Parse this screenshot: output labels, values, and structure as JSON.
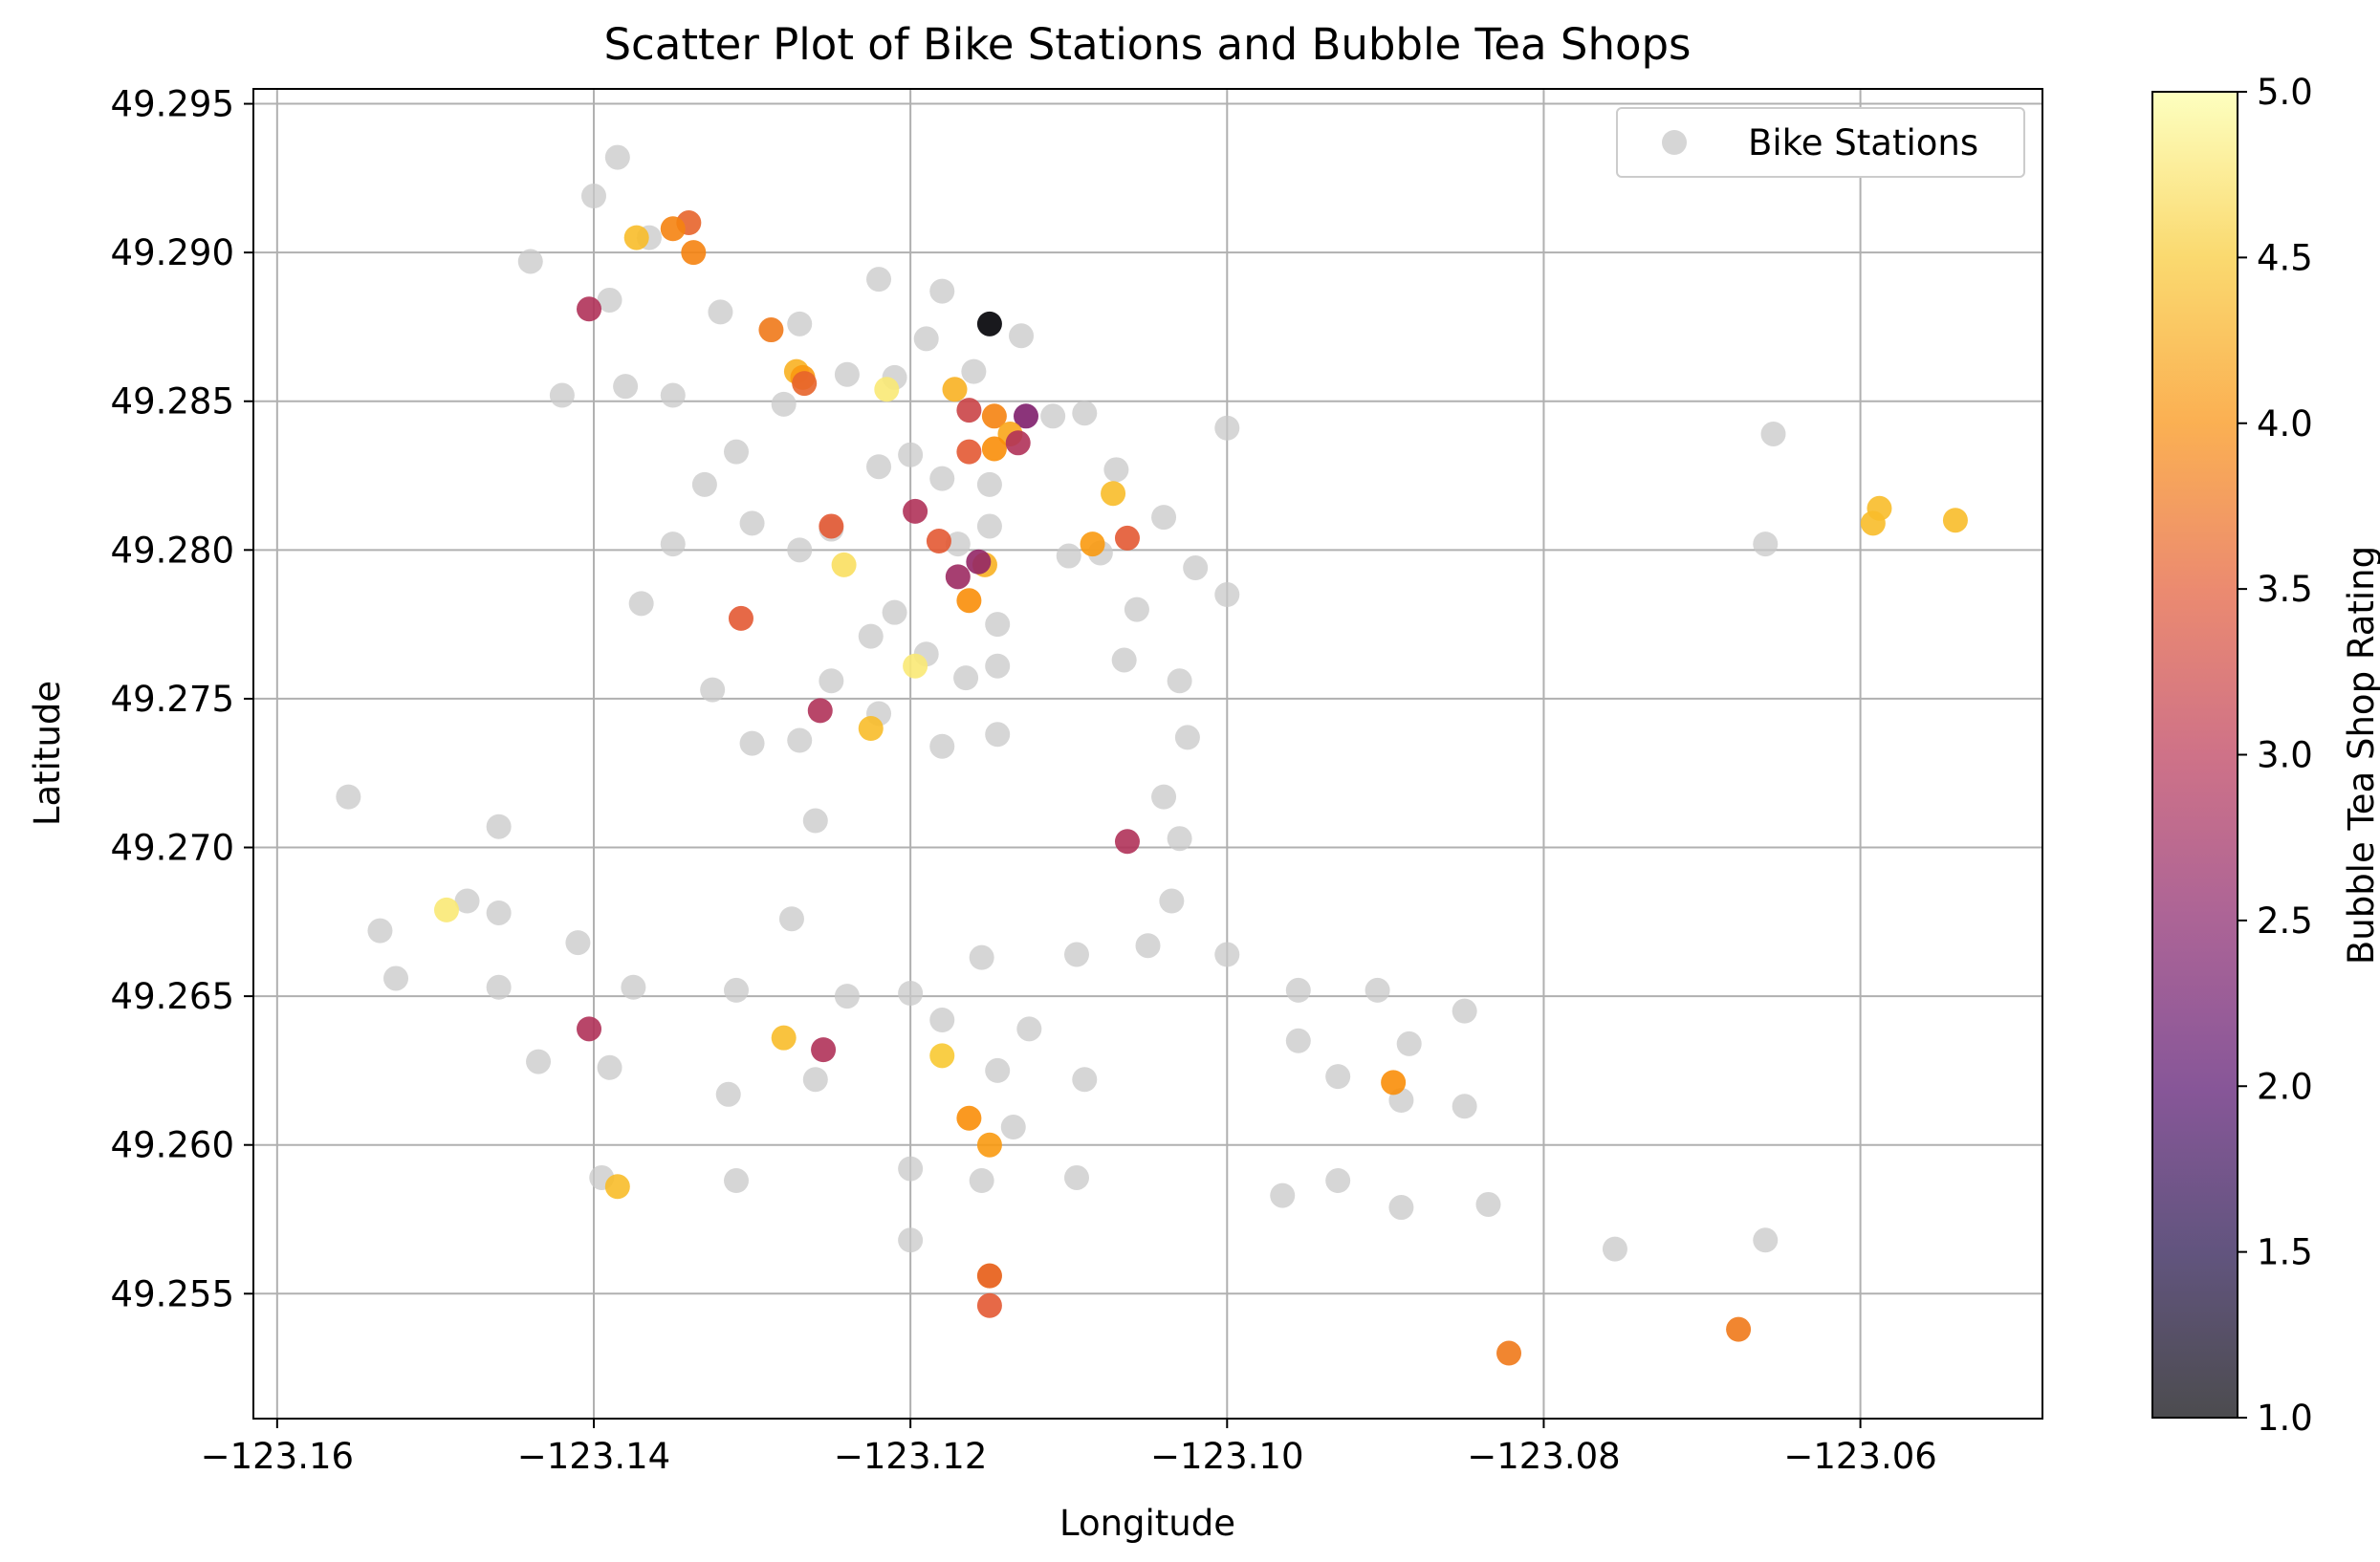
{
  "chart_data": {
    "type": "scatter",
    "title": "Scatter Plot of Bike Stations and Bubble Tea Shops",
    "xlabel": "Longitude",
    "ylabel": "Latitude",
    "xlim": [
      -123.1615,
      -123.0485
    ],
    "ylim": [
      49.2508,
      49.2955
    ],
    "xticks": [
      -123.16,
      -123.14,
      -123.12,
      -123.1,
      -123.08,
      -123.06
    ],
    "xtick_labels": [
      "−123.16",
      "−123.14",
      "−123.12",
      "−123.10",
      "−123.08",
      "−123.06"
    ],
    "yticks": [
      49.255,
      49.26,
      49.265,
      49.27,
      49.275,
      49.28,
      49.285,
      49.29,
      49.295
    ],
    "ytick_labels": [
      "49.255",
      "49.260",
      "49.265",
      "49.270",
      "49.275",
      "49.280",
      "49.285",
      "49.290",
      "49.295"
    ],
    "grid": true,
    "legend": {
      "position": "top-right",
      "entries": [
        "Bike Stations"
      ]
    },
    "colorbar": {
      "label": "Bubble Tea Shop Rating",
      "range": [
        1.0,
        5.0
      ],
      "ticks": [
        1.0,
        1.5,
        2.0,
        2.5,
        3.0,
        3.5,
        4.0,
        4.5,
        5.0
      ],
      "tick_labels": [
        "1.0",
        "1.5",
        "2.0",
        "2.5",
        "3.0",
        "3.5",
        "4.0",
        "4.5",
        "5.0"
      ],
      "colormap": "inferno"
    },
    "colors": {
      "bike_station": "#c8c8c8",
      "axes": "#000000",
      "grid": "#b0b0b0"
    },
    "series": [
      {
        "name": "Bike Stations",
        "points": [
          [
            -123.1385,
            49.2932
          ],
          [
            -123.14,
            49.2919
          ],
          [
            -123.1365,
            49.2905
          ],
          [
            -123.144,
            49.2897
          ],
          [
            -123.139,
            49.2884
          ],
          [
            -123.132,
            49.288
          ],
          [
            -123.127,
            49.2876
          ],
          [
            -123.122,
            49.2891
          ],
          [
            -123.118,
            49.2887
          ],
          [
            -123.113,
            49.2872
          ],
          [
            -123.119,
            49.2871
          ],
          [
            -123.116,
            49.286
          ],
          [
            -123.124,
            49.2859
          ],
          [
            -123.121,
            49.2858
          ],
          [
            -123.142,
            49.2852
          ],
          [
            -123.138,
            49.2855
          ],
          [
            -123.135,
            49.2852
          ],
          [
            -123.128,
            49.2849
          ],
          [
            -123.111,
            49.2845
          ],
          [
            -123.109,
            49.2846
          ],
          [
            -123.1,
            49.2841
          ],
          [
            -123.131,
            49.2833
          ],
          [
            -123.12,
            49.2832
          ],
          [
            -123.122,
            49.2828
          ],
          [
            -123.107,
            49.2827
          ],
          [
            -123.133,
            49.2822
          ],
          [
            -123.118,
            49.2824
          ],
          [
            -123.115,
            49.2822
          ],
          [
            -123.104,
            49.2811
          ],
          [
            -123.13,
            49.2809
          ],
          [
            -123.125,
            49.2807
          ],
          [
            -123.115,
            49.2808
          ],
          [
            -123.135,
            49.2802
          ],
          [
            -123.127,
            49.28
          ],
          [
            -123.117,
            49.2802
          ],
          [
            -123.11,
            49.2798
          ],
          [
            -123.108,
            49.2799
          ],
          [
            -123.102,
            49.2794
          ],
          [
            -123.1,
            49.2785
          ],
          [
            -123.137,
            49.2782
          ],
          [
            -123.121,
            49.2779
          ],
          [
            -123.1057,
            49.278
          ],
          [
            -123.1145,
            49.2775
          ],
          [
            -123.1225,
            49.2771
          ],
          [
            -123.119,
            49.2765
          ],
          [
            -123.1065,
            49.2763
          ],
          [
            -123.1145,
            49.2761
          ],
          [
            -123.125,
            49.2756
          ],
          [
            -123.1165,
            49.2757
          ],
          [
            -123.103,
            49.2756
          ],
          [
            -123.1325,
            49.2753
          ],
          [
            -123.122,
            49.2745
          ],
          [
            -123.1145,
            49.2738
          ],
          [
            -123.13,
            49.2735
          ],
          [
            -123.127,
            49.2736
          ],
          [
            -123.118,
            49.2734
          ],
          [
            -123.1025,
            49.2737
          ],
          [
            -123.1555,
            49.2717
          ],
          [
            -123.104,
            49.2717
          ],
          [
            -123.146,
            49.2707
          ],
          [
            -123.126,
            49.2709
          ],
          [
            -123.103,
            49.2703
          ],
          [
            -123.148,
            49.2682
          ],
          [
            -123.1035,
            49.2682
          ],
          [
            -123.146,
            49.2678
          ],
          [
            -123.1275,
            49.2676
          ],
          [
            -123.1535,
            49.2672
          ],
          [
            -123.141,
            49.2668
          ],
          [
            -123.105,
            49.2667
          ],
          [
            -123.1155,
            49.2663
          ],
          [
            -123.1095,
            49.2664
          ],
          [
            -123.1,
            49.2664
          ],
          [
            -123.1525,
            49.2656
          ],
          [
            -123.146,
            49.2653
          ],
          [
            -123.1375,
            49.2653
          ],
          [
            -123.131,
            49.2652
          ],
          [
            -123.12,
            49.2651
          ],
          [
            -123.124,
            49.265
          ],
          [
            -123.0955,
            49.2652
          ],
          [
            -123.0905,
            49.2652
          ],
          [
            -123.085,
            49.2645
          ],
          [
            -123.118,
            49.2642
          ],
          [
            -123.1125,
            49.2639
          ],
          [
            -123.0955,
            49.2635
          ],
          [
            -123.0885,
            49.2634
          ],
          [
            -123.1435,
            49.2628
          ],
          [
            -123.139,
            49.2626
          ],
          [
            -123.1145,
            49.2625
          ],
          [
            -123.126,
            49.2622
          ],
          [
            -123.109,
            49.2622
          ],
          [
            -123.093,
            49.2623
          ],
          [
            -123.1315,
            49.2617
          ],
          [
            -123.089,
            49.2615
          ],
          [
            -123.085,
            49.2613
          ],
          [
            -123.1135,
            49.2606
          ],
          [
            -123.1395,
            49.2589
          ],
          [
            -123.131,
            49.2588
          ],
          [
            -123.12,
            49.2592
          ],
          [
            -123.1155,
            49.2588
          ],
          [
            -123.1095,
            49.2589
          ],
          [
            -123.0965,
            49.2583
          ],
          [
            -123.093,
            49.2588
          ],
          [
            -123.089,
            49.2579
          ],
          [
            -123.0835,
            49.258
          ],
          [
            -123.12,
            49.2568
          ],
          [
            -123.0755,
            49.2565
          ],
          [
            -123.066,
            49.2568
          ],
          [
            -123.0655,
            49.2839
          ],
          [
            -123.066,
            49.2802
          ]
        ]
      },
      {
        "name": "",
        "points": [
          [
            -123.134,
            49.291,
            3.6
          ],
          [
            -123.135,
            49.2908,
            3.9
          ],
          [
            -123.1373,
            49.2905,
            4.4
          ],
          [
            -123.1337,
            49.29,
            3.9
          ],
          [
            -123.1403,
            49.2881,
            2.9
          ],
          [
            -123.115,
            49.2876,
            1.0
          ],
          [
            -123.1288,
            49.2874,
            3.8
          ],
          [
            -123.1272,
            49.286,
            4.3
          ],
          [
            -123.1268,
            49.2858,
            4.1
          ],
          [
            -123.1267,
            49.2856,
            3.6
          ],
          [
            -123.1215,
            49.2854,
            4.8
          ],
          [
            -123.1172,
            49.2854,
            4.3
          ],
          [
            -123.1147,
            49.2845,
            3.9
          ],
          [
            -123.1163,
            49.2847,
            3.2
          ],
          [
            -123.1127,
            49.2845,
            2.4
          ],
          [
            -123.1137,
            49.2839,
            4.2
          ],
          [
            -123.1147,
            49.2834,
            4.0
          ],
          [
            -123.1132,
            49.2836,
            2.9
          ],
          [
            -123.1163,
            49.2833,
            3.5
          ],
          [
            -123.1072,
            49.2819,
            4.4
          ],
          [
            -123.1197,
            49.2813,
            2.9
          ],
          [
            -123.125,
            49.2808,
            3.5
          ],
          [
            -123.1063,
            49.2804,
            3.5
          ],
          [
            -123.1085,
            49.2802,
            4.1
          ],
          [
            -123.1182,
            49.2803,
            3.5
          ],
          [
            -123.1242,
            49.2795,
            4.7
          ],
          [
            -123.1153,
            49.2795,
            4.3
          ],
          [
            -123.1157,
            49.2796,
            2.6
          ],
          [
            -123.117,
            49.2791,
            2.7
          ],
          [
            -123.1163,
            49.2783,
            4.0
          ],
          [
            -123.1307,
            49.2777,
            3.5
          ],
          [
            -123.1197,
            49.2761,
            4.8
          ],
          [
            -123.1257,
            49.2746,
            2.9
          ],
          [
            -123.1225,
            49.274,
            4.4
          ],
          [
            -123.1063,
            49.2702,
            2.9
          ],
          [
            -123.1493,
            49.2679,
            4.8
          ],
          [
            -123.1403,
            49.2639,
            2.9
          ],
          [
            -123.128,
            49.2636,
            4.4
          ],
          [
            -123.1255,
            49.2632,
            2.9
          ],
          [
            -123.118,
            49.263,
            4.5
          ],
          [
            -123.0895,
            49.2621,
            4.0
          ],
          [
            -123.1163,
            49.2609,
            4.0
          ],
          [
            -123.115,
            49.26,
            4.1
          ],
          [
            -123.1385,
            49.2586,
            4.4
          ],
          [
            -123.115,
            49.2556,
            4.3
          ],
          [
            -123.115,
            49.2556,
            3.6
          ],
          [
            -123.115,
            49.2546,
            3.5
          ],
          [
            -123.0822,
            49.253,
            3.8
          ],
          [
            -123.0677,
            49.2538,
            3.8
          ],
          [
            -123.0588,
            49.2814,
            4.4
          ],
          [
            -123.0592,
            49.2809,
            4.4
          ],
          [
            -123.054,
            49.281,
            4.4
          ]
        ]
      }
    ]
  }
}
